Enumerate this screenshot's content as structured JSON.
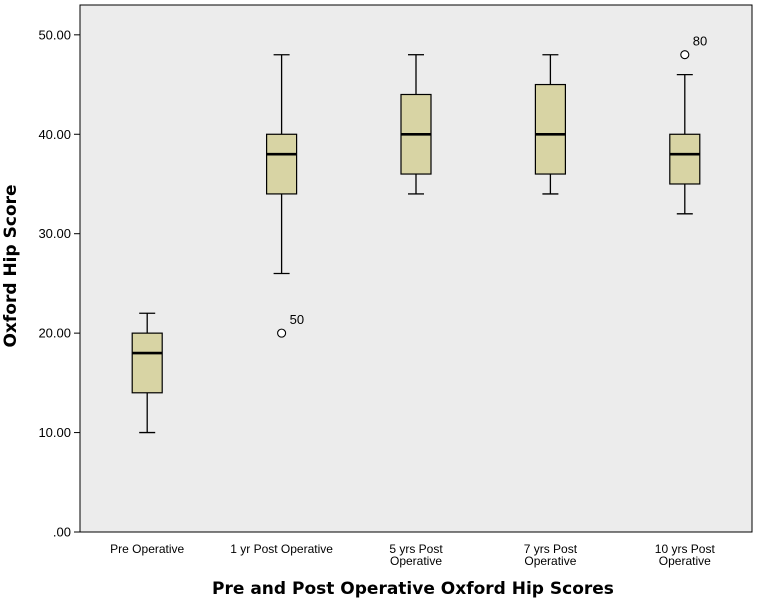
{
  "chart_data": {
    "type": "boxplot",
    "xlabel": "Pre and Post Operative Oxford Hip Scores",
    "ylabel": "Oxford Hip Score",
    "ylim": [
      0,
      53
    ],
    "yticks": [
      0,
      10,
      20,
      30,
      40,
      50
    ],
    "ytick_labels": [
      ".00",
      "10.00",
      "20.00",
      "30.00",
      "40.00",
      "50.00"
    ],
    "grid": false,
    "colors": {
      "box_fill": "#d8d4a4",
      "plot_bg": "#ececec",
      "stroke": "#000000"
    },
    "categories": [
      [
        "Pre Operative"
      ],
      [
        "1 yr Post Operative"
      ],
      [
        "5 yrs Post",
        "Operative"
      ],
      [
        "7 yrs Post",
        "Operative"
      ],
      [
        "10 yrs Post",
        "Operative"
      ]
    ],
    "boxes": [
      {
        "min": 10,
        "q1": 14,
        "median": 18,
        "q3": 20,
        "max": 22,
        "outliers": []
      },
      {
        "min": 26,
        "q1": 34,
        "median": 38,
        "q3": 40,
        "max": 48,
        "outliers": [
          {
            "value": 20,
            "label": "50"
          }
        ]
      },
      {
        "min": 34,
        "q1": 36,
        "median": 40,
        "q3": 44,
        "max": 48,
        "outliers": []
      },
      {
        "min": 34,
        "q1": 36,
        "median": 40,
        "q3": 45,
        "max": 48,
        "outliers": []
      },
      {
        "min": 32,
        "q1": 35,
        "median": 38,
        "q3": 40,
        "max": 46,
        "outliers": [
          {
            "value": 48,
            "label": "80"
          }
        ]
      }
    ]
  }
}
